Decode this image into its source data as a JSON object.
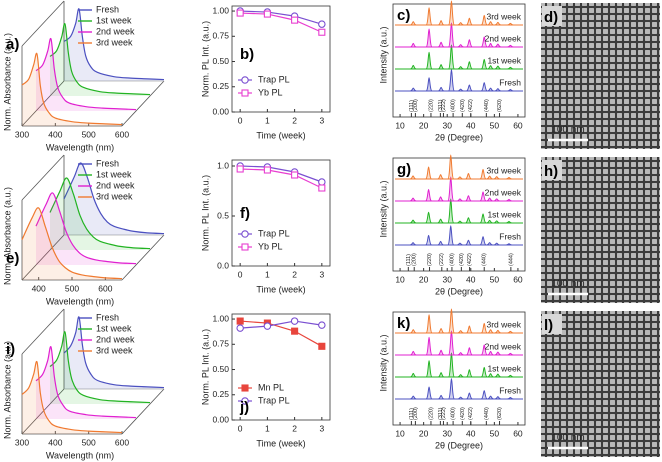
{
  "chart_data": [
    {
      "type": "waterfall",
      "label": "a)",
      "xlabel": "Wavelength (nm)",
      "ylabel": "Norm. Absorbance (a.u.)",
      "x": [
        300,
        320,
        335,
        345,
        355,
        365,
        380,
        400,
        450,
        500,
        550,
        600
      ],
      "xlim": [
        300,
        600
      ],
      "xticks": [
        300,
        400,
        500,
        600
      ],
      "ylim": [
        0,
        1
      ],
      "series": [
        {
          "name": "Fresh",
          "color": "#4b50c0",
          "values": [
            0.55,
            0.62,
            0.8,
            1.0,
            0.62,
            0.35,
            0.2,
            0.12,
            0.06,
            0.04,
            0.03,
            0.02
          ]
        },
        {
          "name": "1st week",
          "color": "#22b322",
          "values": [
            0.55,
            0.63,
            0.82,
            1.0,
            0.6,
            0.34,
            0.2,
            0.12,
            0.06,
            0.04,
            0.03,
            0.02
          ]
        },
        {
          "name": "2nd week",
          "color": "#e020d0",
          "values": [
            0.56,
            0.64,
            0.83,
            1.0,
            0.58,
            0.33,
            0.19,
            0.11,
            0.06,
            0.04,
            0.03,
            0.02
          ]
        },
        {
          "name": "3rd week",
          "color": "#f07a30",
          "values": [
            0.57,
            0.65,
            0.85,
            1.0,
            0.56,
            0.32,
            0.19,
            0.11,
            0.06,
            0.04,
            0.03,
            0.02
          ]
        }
      ]
    },
    {
      "type": "line",
      "label": "b)",
      "xlabel": "Time (week)",
      "ylabel": "Norm. PL Int. (a.u.)",
      "x": [
        0,
        1,
        2,
        3
      ],
      "xlim": [
        -0.3,
        3.3
      ],
      "xticks": [
        0,
        1,
        2,
        3
      ],
      "ylim": [
        0,
        1.05
      ],
      "yticks": [
        {
          "value": 0,
          "label": "0.00"
        },
        0.25,
        {
          "value": 0.5,
          "label": "0.50"
        },
        0.75,
        {
          "value": 1,
          "label": "1.00"
        }
      ],
      "series": [
        {
          "name": "Trap PL",
          "color": "#7a4fd1",
          "marker": "circle",
          "values": [
            1.0,
            0.99,
            0.95,
            0.87
          ]
        },
        {
          "name": "Yb PL",
          "color": "#e83ed0",
          "marker": "square",
          "values": [
            0.98,
            0.97,
            0.91,
            0.79
          ]
        }
      ]
    },
    {
      "type": "diffraction",
      "label": "c)",
      "xlabel": "2θ (Degree)",
      "ylabel": "Intensity (a.u.)",
      "x": [
        15.6,
        22.3,
        27.4,
        31.8,
        35.7,
        39.4,
        45.7,
        48.4,
        51.5,
        56.8
      ],
      "xlim": [
        7,
        63
      ],
      "xticks": [
        10,
        20,
        30,
        40,
        50,
        60
      ],
      "series": [
        {
          "name": "Fresh",
          "color": "#4b50c0",
          "values": [
            0.12,
            0.55,
            0.15,
            0.9,
            0.08,
            0.25,
            0.35,
            0.12,
            0.1,
            0.06
          ]
        },
        {
          "name": "1st week",
          "color": "#22b322",
          "values": [
            0.15,
            0.7,
            0.18,
            1.0,
            0.1,
            0.3,
            0.4,
            0.14,
            0.12,
            0.07
          ]
        },
        {
          "name": "2nd week",
          "color": "#e020d0",
          "values": [
            0.15,
            0.75,
            0.2,
            1.0,
            0.1,
            0.3,
            0.42,
            0.15,
            0.12,
            0.07
          ]
        },
        {
          "name": "3rd week",
          "color": "#f07a30",
          "values": [
            0.14,
            0.72,
            0.18,
            1.0,
            0.1,
            0.28,
            0.4,
            0.14,
            0.11,
            0.07
          ]
        }
      ],
      "reference": {
        "x": [
          14.8,
          16.5,
          23.1,
          27.1,
          28.4,
          32.5,
          36.4,
          40.0,
          46.6,
          52.2
        ],
        "labels": [
          "(111)",
          "(200)",
          "(220)",
          "(311)",
          "(222)",
          "(400)",
          "(420)",
          "(422)",
          "(440)",
          "(620)"
        ]
      }
    },
    {
      "type": "image",
      "label": "d)",
      "scale_bar": "100 nm"
    },
    {
      "type": "waterfall",
      "label": "e)",
      "xlabel": "Wavelength (nm)",
      "ylabel": "Norm. Absorbance (a.u.)",
      "x": [
        350,
        380,
        400,
        420,
        440,
        460,
        480,
        500,
        530,
        560,
        600,
        650
      ],
      "xlim": [
        350,
        650
      ],
      "xticks": [
        400,
        500,
        600
      ],
      "ylim": [
        0,
        1
      ],
      "series": [
        {
          "name": "Fresh",
          "color": "#4b50c0",
          "values": [
            0.5,
            0.8,
            1.0,
            0.8,
            0.5,
            0.3,
            0.18,
            0.12,
            0.08,
            0.05,
            0.03,
            0.02
          ]
        },
        {
          "name": "1st week",
          "color": "#22b322",
          "values": [
            0.52,
            0.82,
            1.0,
            0.78,
            0.48,
            0.29,
            0.18,
            0.12,
            0.08,
            0.05,
            0.03,
            0.02
          ]
        },
        {
          "name": "2nd week",
          "color": "#e020d0",
          "values": [
            0.54,
            0.84,
            1.0,
            0.76,
            0.47,
            0.28,
            0.17,
            0.11,
            0.07,
            0.05,
            0.03,
            0.02
          ]
        },
        {
          "name": "3rd week",
          "color": "#f07a30",
          "values": [
            0.56,
            0.86,
            1.0,
            0.74,
            0.46,
            0.27,
            0.17,
            0.11,
            0.07,
            0.05,
            0.03,
            0.02
          ]
        }
      ]
    },
    {
      "type": "line",
      "label": "f)",
      "xlabel": "Time (week)",
      "ylabel": "Norm. PL Int. (a.u.)",
      "x": [
        0,
        1,
        2,
        3
      ],
      "xlim": [
        -0.3,
        3.3
      ],
      "xticks": [
        0,
        1,
        2,
        3
      ],
      "ylim": [
        0,
        1.06
      ],
      "yticks": [
        {
          "value": 0,
          "label": "0.0"
        },
        0.5,
        {
          "value": 1,
          "label": "1.0"
        }
      ],
      "series": [
        {
          "name": "Trap PL",
          "color": "#7a4fd1",
          "marker": "circle",
          "values": [
            1.0,
            0.99,
            0.94,
            0.84
          ]
        },
        {
          "name": "Yb PL",
          "color": "#e83ed0",
          "marker": "square",
          "values": [
            0.97,
            0.96,
            0.91,
            0.78
          ]
        }
      ]
    },
    {
      "type": "diffraction",
      "label": "g)",
      "xlabel": "2θ (Degree)",
      "ylabel": "Intensity (a.u.)",
      "x": [
        15.5,
        22.1,
        27.2,
        31.5,
        35.4,
        39.0,
        45.2,
        48.0,
        51.0,
        56.2
      ],
      "xlim": [
        7,
        63
      ],
      "xticks": [
        10,
        20,
        30,
        40,
        50,
        60
      ],
      "series": [
        {
          "name": "Fresh",
          "color": "#4b50c0",
          "values": [
            0.1,
            0.4,
            0.15,
            0.8,
            0.08,
            0.2,
            0.35,
            0.1,
            0.08,
            0.05
          ]
        },
        {
          "name": "1st week",
          "color": "#22b322",
          "values": [
            0.12,
            0.45,
            0.16,
            1.0,
            0.08,
            0.22,
            0.38,
            0.11,
            0.09,
            0.06
          ]
        },
        {
          "name": "2nd week",
          "color": "#e020d0",
          "values": [
            0.12,
            0.48,
            0.17,
            1.0,
            0.09,
            0.22,
            0.38,
            0.12,
            0.09,
            0.06
          ]
        },
        {
          "name": "3rd week",
          "color": "#f07a30",
          "values": [
            0.13,
            0.5,
            0.18,
            1.0,
            0.09,
            0.23,
            0.4,
            0.12,
            0.1,
            0.06
          ]
        }
      ],
      "reference": {
        "x": [
          13.5,
          16.0,
          22.5,
          27.7,
          32.0,
          36.0,
          39.5,
          45.7,
          57.0
        ],
        "labels": [
          "(111)",
          "(200)",
          "(220)",
          "(222)",
          "(400)",
          "(420)",
          "(422)",
          "(440)",
          "(444)"
        ]
      }
    },
    {
      "type": "image",
      "label": "h)",
      "scale_bar": "100 nm"
    },
    {
      "type": "waterfall",
      "label": "i)",
      "xlabel": "Wavelength (nm)",
      "ylabel": "Norm. Absorbance (a.u.)",
      "x": [
        300,
        320,
        335,
        345,
        355,
        365,
        380,
        400,
        450,
        500,
        550,
        600
      ],
      "xlim": [
        300,
        600
      ],
      "xticks": [
        300,
        400,
        500,
        600
      ],
      "ylim": [
        0,
        1
      ],
      "series": [
        {
          "name": "Fresh",
          "color": "#4b50c0",
          "values": [
            0.5,
            0.6,
            0.78,
            1.0,
            0.62,
            0.36,
            0.21,
            0.12,
            0.06,
            0.04,
            0.03,
            0.02
          ]
        },
        {
          "name": "1st week",
          "color": "#22b322",
          "values": [
            0.52,
            0.61,
            0.8,
            1.0,
            0.6,
            0.35,
            0.2,
            0.12,
            0.06,
            0.04,
            0.03,
            0.02
          ]
        },
        {
          "name": "2nd week",
          "color": "#e020d0",
          "values": [
            0.53,
            0.62,
            0.81,
            1.0,
            0.59,
            0.34,
            0.2,
            0.11,
            0.06,
            0.04,
            0.03,
            0.02
          ]
        },
        {
          "name": "3rd week",
          "color": "#f07a30",
          "values": [
            0.55,
            0.64,
            0.83,
            1.0,
            0.57,
            0.33,
            0.19,
            0.11,
            0.06,
            0.04,
            0.03,
            0.02
          ]
        }
      ]
    },
    {
      "type": "line",
      "label": "j)",
      "xlabel": "Time (week)",
      "ylabel": "Norm. PL Int. (a.u.)",
      "x": [
        0,
        1,
        2,
        3
      ],
      "xlim": [
        -0.3,
        3.3
      ],
      "xticks": [
        0,
        1,
        2,
        3
      ],
      "ylim": [
        0,
        1.05
      ],
      "yticks": [
        {
          "value": 0,
          "label": "0.00"
        },
        0.25,
        {
          "value": 0.5,
          "label": "0.50"
        },
        0.75,
        {
          "value": 1,
          "label": "1.00"
        }
      ],
      "series": [
        {
          "name": "Mn PL",
          "color": "#e8453c",
          "marker": "square",
          "filled": true,
          "values": [
            0.98,
            0.96,
            0.88,
            0.73
          ]
        },
        {
          "name": "Trap PL",
          "color": "#7a4fd1",
          "marker": "circle",
          "values": [
            0.91,
            0.93,
            0.98,
            0.94
          ]
        }
      ]
    },
    {
      "type": "diffraction",
      "label": "k)",
      "xlabel": "2θ (Degree)",
      "ylabel": "Intensity (a.u.)",
      "x": [
        15.6,
        22.3,
        27.4,
        31.8,
        35.7,
        39.4,
        45.7,
        48.4,
        51.5,
        56.8
      ],
      "xlim": [
        7,
        63
      ],
      "xticks": [
        10,
        20,
        30,
        40,
        50,
        60
      ],
      "series": [
        {
          "name": "Fresh",
          "color": "#4b50c0",
          "values": [
            0.12,
            0.5,
            0.15,
            0.85,
            0.08,
            0.25,
            0.35,
            0.12,
            0.1,
            0.06
          ]
        },
        {
          "name": "1st week",
          "color": "#22b322",
          "values": [
            0.15,
            0.68,
            0.18,
            1.0,
            0.1,
            0.3,
            0.4,
            0.14,
            0.12,
            0.07
          ]
        },
        {
          "name": "2nd week",
          "color": "#e020d0",
          "values": [
            0.15,
            0.74,
            0.2,
            1.0,
            0.1,
            0.3,
            0.42,
            0.15,
            0.12,
            0.07
          ]
        },
        {
          "name": "3rd week",
          "color": "#f07a30",
          "values": [
            0.14,
            0.76,
            0.19,
            1.0,
            0.1,
            0.29,
            0.4,
            0.14,
            0.11,
            0.07
          ]
        }
      ],
      "reference": {
        "x": [
          14.8,
          16.5,
          23.1,
          27.1,
          28.4,
          32.5,
          36.4,
          40.0,
          46.6,
          52.2
        ],
        "labels": [
          "(111)",
          "(200)",
          "(220)",
          "(311)",
          "(222)",
          "(400)",
          "(420)",
          "(422)",
          "(440)",
          "(620)"
        ]
      }
    },
    {
      "type": "image",
      "label": "l)",
      "scale_bar": "100 nm"
    }
  ]
}
